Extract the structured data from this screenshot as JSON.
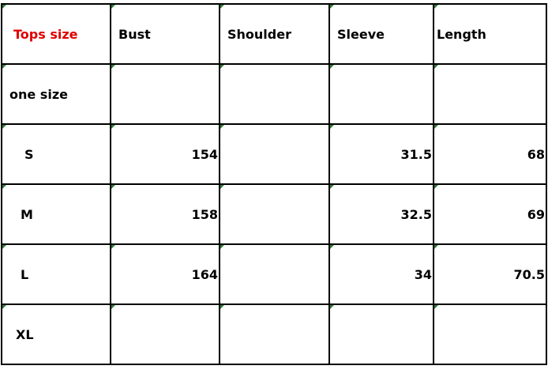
{
  "table": {
    "headers": [
      "Tops size",
      "Bust",
      "Shoulder",
      "Sleeve",
      "Length"
    ],
    "header_color": "#e00000",
    "rows": [
      [
        "one size",
        "",
        "",
        "",
        ""
      ],
      [
        "S",
        "154",
        "",
        "31.5",
        "68"
      ],
      [
        "M",
        "158",
        "",
        "32.5",
        "69"
      ],
      [
        "L",
        "164",
        "",
        "34",
        "70.5"
      ],
      [
        "XL",
        "",
        "",
        "",
        ""
      ]
    ]
  }
}
